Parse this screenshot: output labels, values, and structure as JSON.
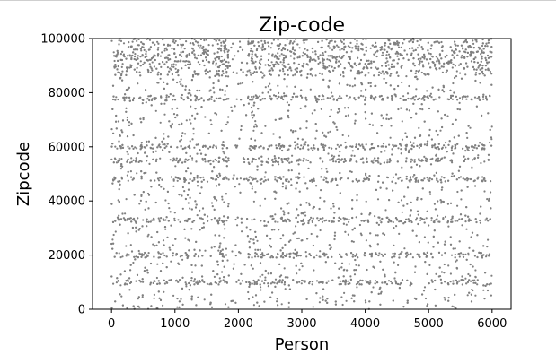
{
  "chart_data": {
    "type": "scatter",
    "title": "Zip-code",
    "xlabel": "Person",
    "ylabel": "Zipcode",
    "xlim": [
      -300,
      6300
    ],
    "ylim": [
      0,
      100000
    ],
    "xticks": [
      0,
      1000,
      2000,
      3000,
      4000,
      5000,
      6000
    ],
    "xtick_labels": [
      "0",
      "1000",
      "2000",
      "3000",
      "4000",
      "5000",
      "6000"
    ],
    "yticks": [
      0,
      20000,
      40000,
      60000,
      80000,
      100000
    ],
    "ytick_labels": [
      "0",
      "20000",
      "40000",
      "60000",
      "80000",
      "100000"
    ],
    "grid": false,
    "marker_color": "#808080",
    "n_points": 6000,
    "x_range": [
      0,
      6000
    ],
    "y_range": [
      0,
      100000
    ],
    "dense_horizontal_bands_y": [
      55000,
      94000,
      60000,
      48000,
      10000,
      33000,
      20000,
      78000
    ],
    "notes_sparse_region_x": [
      1850,
      2150
    ]
  }
}
